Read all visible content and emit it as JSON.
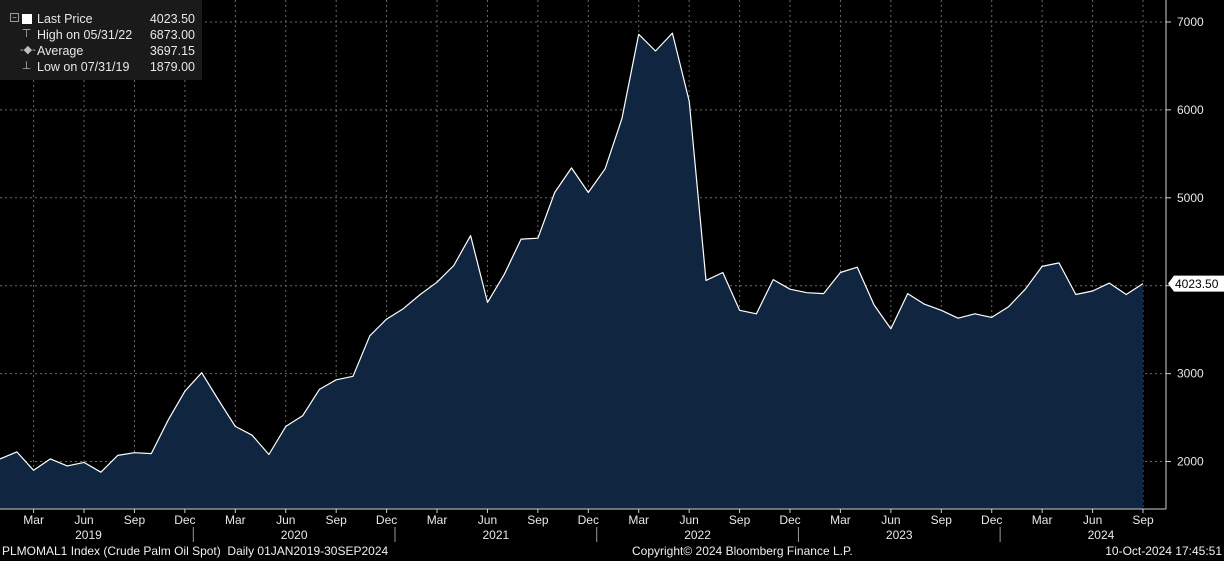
{
  "legend": {
    "rows": [
      {
        "label": "Last Price",
        "value": "4023.50",
        "icon": "square-swatch-icon"
      },
      {
        "label": "High on 05/31/22",
        "value": "6873.00",
        "icon": "high-marker-icon"
      },
      {
        "label": "Average",
        "value": "3697.15",
        "icon": "average-marker-icon"
      },
      {
        "label": "Low on 07/31/19",
        "value": "1879.00",
        "icon": "low-marker-icon"
      }
    ]
  },
  "footer": {
    "left": "PLMOMAL1 Index (Crude Palm Oil Spot)  Daily 01JAN2019-30SEP2024",
    "center": "Copyright© 2024 Bloomberg Finance L.P.",
    "right": "10-Oct-2024 17:45:51"
  },
  "colors": {
    "background": "#000000",
    "area_fill": "#0f2540",
    "line": "#ffffff",
    "grid": "#6a6a6a",
    "text": "#e8e8e8"
  },
  "chart_data": {
    "type": "area",
    "x_unit": "month-end date",
    "x": [
      "2019-01-31",
      "2019-02-28",
      "2019-03-31",
      "2019-04-30",
      "2019-05-31",
      "2019-06-30",
      "2019-07-31",
      "2019-08-31",
      "2019-09-30",
      "2019-10-31",
      "2019-11-30",
      "2019-12-31",
      "2020-01-31",
      "2020-02-29",
      "2020-03-31",
      "2020-04-30",
      "2020-05-31",
      "2020-06-30",
      "2020-07-31",
      "2020-08-31",
      "2020-09-30",
      "2020-10-31",
      "2020-11-30",
      "2020-12-31",
      "2021-01-31",
      "2021-02-28",
      "2021-03-31",
      "2021-04-30",
      "2021-05-31",
      "2021-06-30",
      "2021-07-31",
      "2021-08-31",
      "2021-09-30",
      "2021-10-31",
      "2021-11-30",
      "2021-12-31",
      "2022-01-31",
      "2022-02-28",
      "2022-03-31",
      "2022-04-30",
      "2022-05-31",
      "2022-06-30",
      "2022-07-31",
      "2022-08-31",
      "2022-09-30",
      "2022-10-31",
      "2022-11-30",
      "2022-12-31",
      "2023-01-31",
      "2023-02-28",
      "2023-03-31",
      "2023-04-30",
      "2023-05-31",
      "2023-06-30",
      "2023-07-31",
      "2023-08-31",
      "2023-09-30",
      "2023-10-31",
      "2023-11-30",
      "2023-12-31",
      "2024-01-31",
      "2024-02-29",
      "2024-03-31",
      "2024-04-30",
      "2024-05-31",
      "2024-06-30",
      "2024-07-31",
      "2024-08-31",
      "2024-09-30"
    ],
    "series": [
      {
        "name": "Last Price",
        "values": [
          2030,
          2110,
          1900,
          2030,
          1950,
          1990,
          1879,
          2070,
          2100,
          2090,
          2470,
          2800,
          3010,
          2700,
          2400,
          2300,
          2080,
          2400,
          2520,
          2820,
          2930,
          2970,
          3430,
          3620,
          3740,
          3900,
          4040,
          4230,
          4570,
          3810,
          4130,
          4530,
          4540,
          5060,
          5340,
          5060,
          5330,
          5900,
          6860,
          6670,
          6873,
          6100,
          4060,
          4150,
          3720,
          3680,
          4070,
          3960,
          3920,
          3910,
          4150,
          4210,
          3780,
          3510,
          3910,
          3790,
          3720,
          3630,
          3680,
          3640,
          3760,
          3960,
          4220,
          4260,
          3900,
          3940,
          4030,
          3900,
          4023.5
        ]
      }
    ],
    "y_ticks": [
      2000,
      3000,
      4000,
      5000,
      6000,
      7000
    ],
    "ylim": [
      1460,
      7250
    ],
    "last_value_label": "4023.50",
    "x_month_ticks": [
      "Mar",
      "Jun",
      "Sep",
      "Dec",
      "Mar",
      "Jun",
      "Sep",
      "Dec",
      "Mar",
      "Jun",
      "Sep",
      "Dec",
      "Mar",
      "Jun",
      "Sep",
      "Dec",
      "Mar",
      "Jun",
      "Sep",
      "Dec",
      "Mar",
      "Jun",
      "Sep"
    ],
    "x_year_labels": [
      "2019",
      "2020",
      "2021",
      "2022",
      "2023",
      "2024"
    ],
    "grid": true,
    "legend_position": "top-left",
    "y_axis_side": "right"
  }
}
